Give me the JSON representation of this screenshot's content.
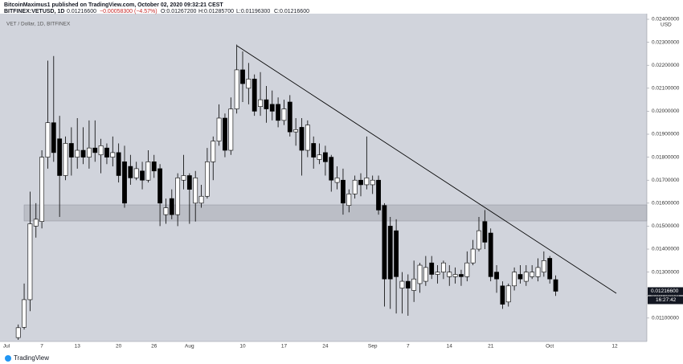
{
  "header": {
    "publisher": "BitcoinMaximus1 published on TradingView.com, October 02, 2020 09:32:21 CEST",
    "symbol": "BITFINEX:VETUSD, 1D",
    "last": "0.01216600",
    "change": "−0.00058300 (−4.57%)",
    "open": "O:0.01267200",
    "high": "H:0.01285700",
    "low": "L:0.01196300",
    "close": "C:0.01216600"
  },
  "chart_data": {
    "type": "candlestick",
    "legend": "VET / Dollar, 1D, BITFINEX",
    "currency": "USD",
    "up_color": "#ffffff",
    "down_color": "#000000",
    "categories": [
      "Jul",
      null,
      null,
      null,
      null,
      null,
      "7",
      null,
      null,
      null,
      null,
      null,
      "13",
      null,
      null,
      null,
      null,
      null,
      null,
      "20",
      null,
      null,
      null,
      null,
      null,
      "26",
      null,
      null,
      null,
      null,
      null,
      "Aug",
      null,
      null,
      null,
      null,
      null,
      null,
      null,
      null,
      "10",
      null,
      null,
      null,
      null,
      null,
      null,
      "17",
      null,
      null,
      null,
      null,
      null,
      null,
      "24",
      null,
      null,
      null,
      null,
      null,
      null,
      null,
      "Sep",
      null,
      null,
      null,
      null,
      null,
      "7",
      null,
      null,
      null,
      null,
      null,
      null,
      "14",
      null,
      null,
      null,
      null,
      null,
      null,
      "21",
      null,
      null,
      null,
      null,
      null,
      null,
      null,
      null,
      null,
      "Oct",
      null,
      null,
      null,
      null,
      null,
      null,
      null,
      null,
      null,
      null,
      "12",
      null,
      null,
      null,
      null,
      null
    ],
    "open": [
      null,
      null,
      0.01015,
      0.0106,
      0.0118,
      0.015,
      0.0152,
      0.018,
      0.0195,
      0.0188,
      0.0172,
      0.0186,
      0.018,
      0.0183,
      0.018,
      0.0184,
      0.0181,
      0.0184,
      0.018,
      0.0182,
      0.0178,
      0.0176,
      0.0171,
      0.0174,
      0.017,
      0.0178,
      0.0175,
      0.0155,
      0.0162,
      0.0155,
      0.017,
      0.0172,
      0.016,
      0.016,
      0.0163,
      0.0178,
      0.0187,
      0.0197,
      0.0183,
      0.0201,
      0.0218,
      0.021,
      0.0214,
      0.0202,
      0.0205,
      0.0203,
      0.0203,
      0.0196,
      0.0204,
      0.0191,
      0.0193,
      0.0183,
      0.0186,
      0.0179,
      0.0182,
      0.018,
      0.0169,
      0.017,
      0.0159,
      0.0164,
      0.017,
      0.0168,
      0.0168,
      0.017,
      0.0159,
      0.015,
      0.0148,
      0.0123,
      0.0126,
      0.0122,
      0.0125,
      0.0126,
      0.0134,
      0.0129,
      0.013,
      0.0128,
      0.0128,
      0.0129,
      0.0128,
      0.0134,
      0.014,
      0.0152,
      0.0147,
      0.013,
      0.0124,
      0.0117,
      0.0124,
      0.0129,
      0.0126,
      0.0128,
      0.0128,
      0.013,
      0.0136,
      0.012672,
      null,
      null,
      null,
      null,
      null,
      null,
      null,
      null,
      null,
      null,
      null,
      null,
      null,
      null,
      null
    ],
    "high": [
      null,
      null,
      0.01072,
      0.0125,
      0.0165,
      0.016,
      0.0183,
      0.0222,
      0.0224,
      0.0198,
      0.0189,
      0.0193,
      0.0197,
      0.0193,
      0.0196,
      0.0196,
      0.0188,
      0.0186,
      0.0189,
      0.0186,
      0.0185,
      0.0181,
      0.0178,
      0.0178,
      0.0183,
      0.0181,
      0.0177,
      0.0162,
      0.0166,
      0.0173,
      0.0181,
      0.0173,
      0.0174,
      0.0168,
      0.0184,
      0.0189,
      0.0203,
      0.0199,
      0.0206,
      0.0229,
      0.0226,
      0.0221,
      0.0216,
      0.0217,
      0.0211,
      0.0209,
      0.0206,
      0.0205,
      0.0207,
      0.0197,
      0.0197,
      0.0196,
      0.0189,
      0.0186,
      0.0185,
      0.0181,
      0.0176,
      0.0175,
      0.0166,
      0.0172,
      0.0173,
      0.0189,
      0.0172,
      0.0172,
      0.016,
      0.0154,
      0.0153,
      0.013,
      0.0129,
      0.0135,
      0.0134,
      0.0137,
      0.0137,
      0.0133,
      0.0135,
      0.0133,
      0.0132,
      0.0131,
      0.0139,
      0.0144,
      0.0154,
      0.0157,
      0.0149,
      0.0133,
      0.0126,
      0.0125,
      0.0132,
      0.0133,
      0.0133,
      0.0133,
      0.0136,
      0.0139,
      0.0137,
      0.012857,
      null,
      null,
      null,
      null,
      null,
      null,
      null,
      null,
      null,
      null,
      null,
      null,
      null,
      null,
      null
    ],
    "low": [
      null,
      null,
      0.01005,
      0.0105,
      0.0113,
      0.0145,
      0.0149,
      0.0175,
      0.0178,
      0.0154,
      0.017,
      0.0172,
      0.0175,
      0.0177,
      0.0175,
      0.0178,
      0.0173,
      0.0177,
      0.0176,
      0.0169,
      0.0158,
      0.0168,
      0.017,
      0.0166,
      0.0169,
      0.0171,
      0.015,
      0.0151,
      0.0153,
      0.015,
      0.0166,
      0.0151,
      0.0152,
      0.0158,
      0.0162,
      0.017,
      0.0185,
      0.018,
      0.0181,
      0.0199,
      0.0204,
      0.0203,
      0.0198,
      0.0198,
      0.0195,
      0.0196,
      0.0193,
      0.0194,
      0.0189,
      0.0185,
      0.0172,
      0.018,
      0.0175,
      0.0177,
      0.0172,
      0.0165,
      0.0166,
      0.0155,
      0.0156,
      0.0162,
      0.0163,
      0.0166,
      0.0164,
      0.0155,
      0.0115,
      0.0114,
      0.0112,
      0.0112,
      0.0111,
      0.0117,
      0.0121,
      0.0124,
      0.0127,
      0.0125,
      0.0127,
      0.0124,
      0.0125,
      0.0124,
      0.0126,
      0.0133,
      0.0139,
      0.014,
      0.0126,
      0.0121,
      0.0114,
      0.0115,
      0.0122,
      0.0125,
      0.0124,
      0.0127,
      0.0126,
      0.0128,
      0.0125,
      0.011963,
      null,
      null,
      null,
      null,
      null,
      null,
      null,
      null,
      null,
      null,
      null,
      null,
      null,
      null,
      null
    ],
    "close": [
      null,
      null,
      0.01058,
      0.0118,
      0.0151,
      0.0153,
      0.018,
      0.0195,
      0.0182,
      0.0172,
      0.0186,
      0.018,
      0.0183,
      0.018,
      0.0184,
      0.0182,
      0.0185,
      0.018,
      0.0182,
      0.0172,
      0.016,
      0.0171,
      0.0175,
      0.017,
      0.0178,
      0.0174,
      0.016,
      0.0158,
      0.0155,
      0.0171,
      0.0172,
      0.0166,
      0.0171,
      0.0163,
      0.0178,
      0.0187,
      0.0197,
      0.0183,
      0.0201,
      0.0218,
      0.0212,
      0.0214,
      0.02,
      0.0205,
      0.0201,
      0.02,
      0.0196,
      0.0201,
      0.0191,
      0.0192,
      0.0183,
      0.0194,
      0.018,
      0.0181,
      0.0178,
      0.017,
      0.0171,
      0.016,
      0.0164,
      0.017,
      0.0168,
      0.0171,
      0.017,
      0.0157,
      0.0127,
      0.0127,
      0.0128,
      0.0126,
      0.0123,
      0.0127,
      0.0133,
      0.0132,
      0.0129,
      0.013,
      0.0134,
      0.013,
      0.0129,
      0.0128,
      0.0134,
      0.014,
      0.0148,
      0.0143,
      0.0128,
      0.0127,
      0.0116,
      0.0124,
      0.013,
      0.0127,
      0.013,
      0.013,
      0.0132,
      0.0135,
      0.0127,
      0.012166,
      null,
      null,
      null,
      null,
      null,
      null,
      null,
      null,
      null,
      null,
      null,
      null,
      null,
      null,
      null
    ],
    "ylim": [
      0.00998,
      0.024245
    ],
    "yticks": [
      {
        "value": 0.011,
        "label": "0.01100000"
      },
      {
        "value": 0.012,
        "label": "0.01200000"
      },
      {
        "value": 0.013,
        "label": "0.01300000"
      },
      {
        "value": 0.014,
        "label": "0.01400000"
      },
      {
        "value": 0.015,
        "label": "0.01500000"
      },
      {
        "value": 0.016,
        "label": "0.01600000"
      },
      {
        "value": 0.017,
        "label": "0.01700000"
      },
      {
        "value": 0.018,
        "label": "0.01800000"
      },
      {
        "value": 0.019,
        "label": "0.01900000"
      },
      {
        "value": 0.02,
        "label": "0.02000000"
      },
      {
        "value": 0.021,
        "label": "0.02100000"
      },
      {
        "value": 0.022,
        "label": "0.02200000"
      },
      {
        "value": 0.023,
        "label": "0.02300000"
      },
      {
        "value": 0.024,
        "label": "0.02400000"
      }
    ],
    "grid": false,
    "last_price": {
      "value": 0.012166,
      "label": "0.01216600"
    },
    "countdown": "16:27:42"
  },
  "footer": {
    "logo": "TradingView"
  }
}
